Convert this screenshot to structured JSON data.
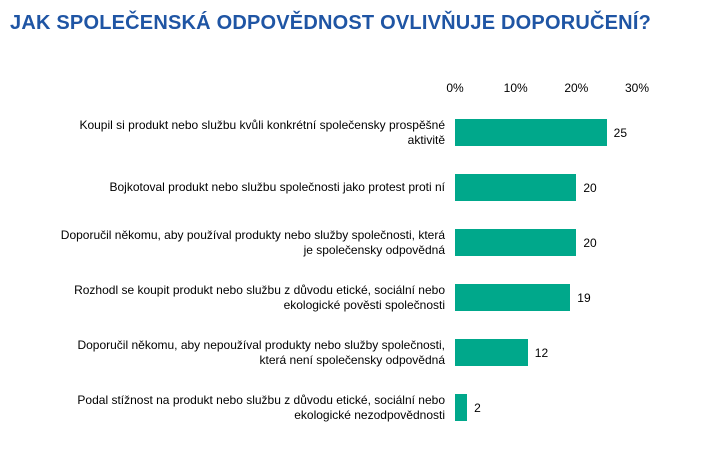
{
  "header": {
    "title": "JAK SPOLEČENSKÁ ODPOVĚDNOST OVLIVŇUJE DOPORUČENÍ?"
  },
  "colors": {
    "title": "#1F55A4",
    "bar": "#00A88B",
    "text": "#000000"
  },
  "chart_data": {
    "type": "bar",
    "orientation": "horizontal",
    "title": "JAK SPOLEČENSKÁ ODPOVĚDNOST OVLIVŇUJE DOPORUČENÍ?",
    "categories": [
      "Koupil si produkt nebo službu kvůli konkrétní společensky prospěšné aktivitě",
      "Bojkotoval produkt nebo službu společnosti jako protest proti ní",
      "Doporučil někomu, aby používal produkty nebo služby společnosti, která je společensky odpovědná",
      "Rozhodl se koupit produkt nebo službu z důvodu etické, sociální nebo ekologické pověsti společnosti",
      "Doporučil někomu, aby nepoužíval produkty nebo služby společnosti, která není společensky odpovědná",
      "Podal stížnost na produkt nebo službu z důvodu etické, sociální nebo ekologické nezodpovědnosti"
    ],
    "values": [
      25,
      20,
      20,
      19,
      12,
      2
    ],
    "value_labels": [
      "25",
      "20",
      "20",
      "19",
      "12",
      "2"
    ],
    "xlabel": "",
    "ylabel": "",
    "xlim": [
      0,
      30
    ],
    "x_ticks": [
      {
        "label": "0%",
        "value": 0
      },
      {
        "label": "10%",
        "value": 10
      },
      {
        "label": "20%",
        "value": 20
      },
      {
        "label": "30%",
        "value": 30
      }
    ],
    "grid": false,
    "legend": false,
    "bar_color": "#00A88B"
  }
}
